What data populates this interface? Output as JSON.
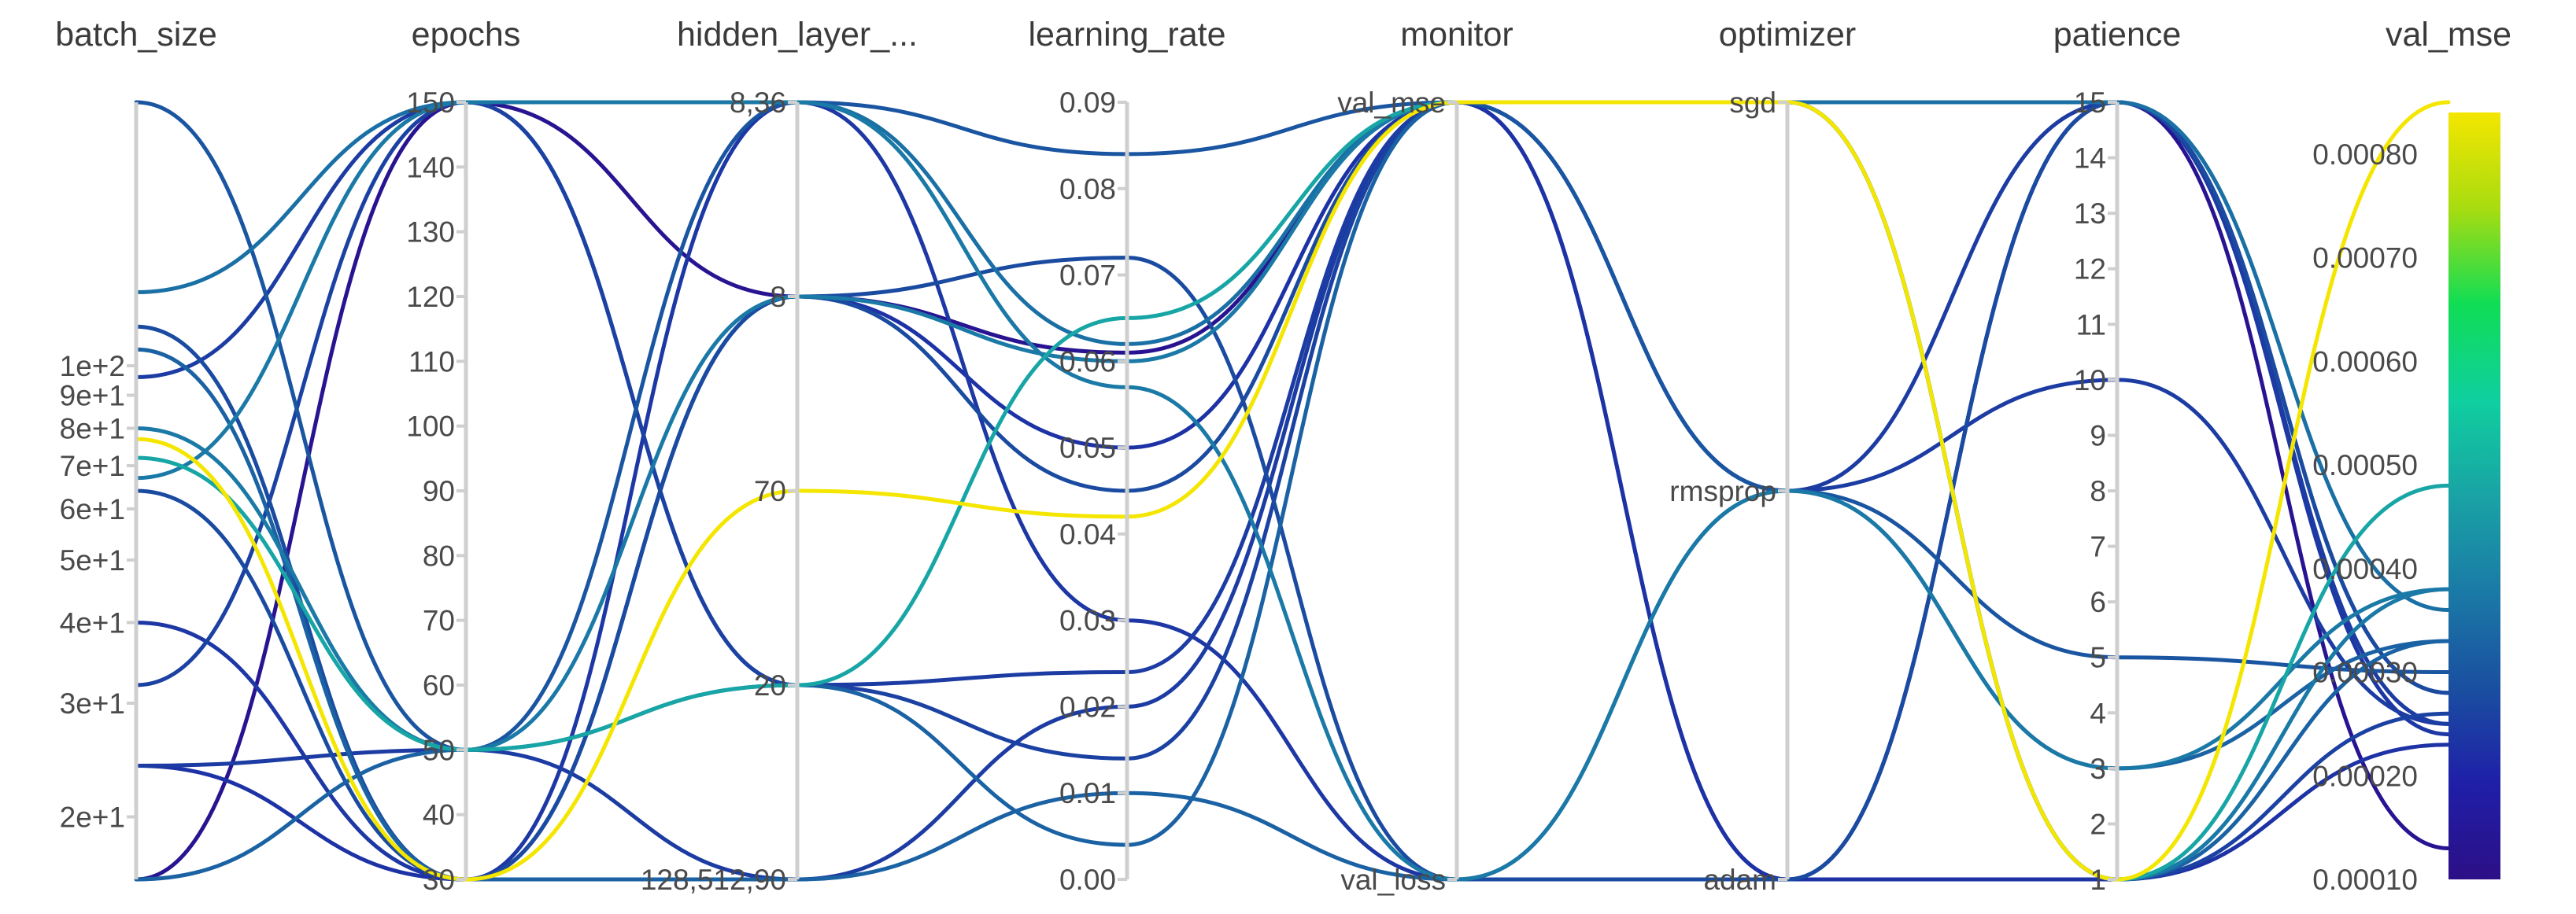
{
  "chart_data": {
    "type": "parallel_coordinates",
    "axes": [
      {
        "name": "batch_size",
        "label": "batch_size",
        "scale": "log",
        "domain": [
          16,
          256
        ],
        "ticks": [
          {
            "v": 20,
            "t": "2e+1"
          },
          {
            "v": 30,
            "t": "3e+1"
          },
          {
            "v": 40,
            "t": "4e+1"
          },
          {
            "v": 50,
            "t": "5e+1"
          },
          {
            "v": 60,
            "t": "6e+1"
          },
          {
            "v": 70,
            "t": "7e+1"
          },
          {
            "v": 80,
            "t": "8e+1"
          },
          {
            "v": 90,
            "t": "9e+1"
          },
          {
            "v": 100,
            "t": "1e+2"
          }
        ]
      },
      {
        "name": "epochs",
        "label": "epochs",
        "scale": "linear",
        "domain": [
          30,
          150
        ],
        "ticks": [
          {
            "v": 30,
            "t": "30"
          },
          {
            "v": 40,
            "t": "40"
          },
          {
            "v": 50,
            "t": "50"
          },
          {
            "v": 60,
            "t": "60"
          },
          {
            "v": 70,
            "t": "70"
          },
          {
            "v": 80,
            "t": "80"
          },
          {
            "v": 90,
            "t": "90"
          },
          {
            "v": 100,
            "t": "100"
          },
          {
            "v": 110,
            "t": "110"
          },
          {
            "v": 120,
            "t": "120"
          },
          {
            "v": 130,
            "t": "130"
          },
          {
            "v": 140,
            "t": "140"
          },
          {
            "v": 150,
            "t": "150"
          }
        ]
      },
      {
        "name": "hidden_layer_sizes",
        "label": "hidden_layer_...",
        "scale": "categorical",
        "categories": [
          "128,512,90",
          "20",
          "70",
          "8",
          "8,36"
        ],
        "ticks": [
          {
            "v": 0,
            "t": "128,512,90"
          },
          {
            "v": 1,
            "t": "20"
          },
          {
            "v": 2,
            "t": "70"
          },
          {
            "v": 3,
            "t": "8"
          },
          {
            "v": 4,
            "t": "8,36"
          }
        ]
      },
      {
        "name": "learning_rate",
        "label": "learning_rate",
        "scale": "linear",
        "domain": [
          0,
          0.09
        ],
        "ticks": [
          {
            "v": 0,
            "t": "0.00"
          },
          {
            "v": 0.01,
            "t": "0.01"
          },
          {
            "v": 0.02,
            "t": "0.02"
          },
          {
            "v": 0.03,
            "t": "0.03"
          },
          {
            "v": 0.04,
            "t": "0.04"
          },
          {
            "v": 0.05,
            "t": "0.05"
          },
          {
            "v": 0.06,
            "t": "0.06"
          },
          {
            "v": 0.07,
            "t": "0.07"
          },
          {
            "v": 0.08,
            "t": "0.08"
          },
          {
            "v": 0.09,
            "t": "0.09"
          }
        ]
      },
      {
        "name": "monitor",
        "label": "monitor",
        "scale": "categorical",
        "categories": [
          "val_loss",
          "val_mse"
        ],
        "ticks": [
          {
            "v": 0,
            "t": "val_loss"
          },
          {
            "v": 1,
            "t": "val_mse"
          }
        ]
      },
      {
        "name": "optimizer",
        "label": "optimizer",
        "scale": "categorical",
        "categories": [
          "adam",
          "rmsprop",
          "sgd"
        ],
        "ticks": [
          {
            "v": 0,
            "t": "adam"
          },
          {
            "v": 1,
            "t": "rmsprop"
          },
          {
            "v": 2,
            "t": "sgd"
          }
        ]
      },
      {
        "name": "patience",
        "label": "patience",
        "scale": "linear",
        "domain": [
          1,
          15
        ],
        "ticks": [
          {
            "v": 1,
            "t": "1"
          },
          {
            "v": 2,
            "t": "2"
          },
          {
            "v": 3,
            "t": "3"
          },
          {
            "v": 4,
            "t": "4"
          },
          {
            "v": 5,
            "t": "5"
          },
          {
            "v": 6,
            "t": "6"
          },
          {
            "v": 7,
            "t": "7"
          },
          {
            "v": 8,
            "t": "8"
          },
          {
            "v": 9,
            "t": "9"
          },
          {
            "v": 10,
            "t": "10"
          },
          {
            "v": 11,
            "t": "11"
          },
          {
            "v": 12,
            "t": "12"
          },
          {
            "v": 13,
            "t": "13"
          },
          {
            "v": 14,
            "t": "14"
          },
          {
            "v": 15,
            "t": "15"
          }
        ]
      },
      {
        "name": "val_mse",
        "label": "val_mse",
        "scale": "linear",
        "domain": [
          0.0001,
          0.00085
        ],
        "ticks": [
          {
            "v": 0.0001,
            "t": "0.00010"
          },
          {
            "v": 0.0002,
            "t": "0.00020"
          },
          {
            "v": 0.0003,
            "t": "0.00030"
          },
          {
            "v": 0.0004,
            "t": "0.00040"
          },
          {
            "v": 0.0005,
            "t": "0.00050"
          },
          {
            "v": 0.0006,
            "t": "0.00060"
          },
          {
            "v": 0.0007,
            "t": "0.00070"
          },
          {
            "v": 0.0008,
            "t": "0.00080"
          }
        ]
      }
    ],
    "colorscale": {
      "metric": "val_mse",
      "domain": [
        0.0001,
        0.00085
      ],
      "colormap": "viridis",
      "stops": [
        "#2c0f86",
        "#1f1fa8",
        "#1a4fa0",
        "#1a7aa6",
        "#19a3a5",
        "#0fcf9f",
        "#10dd55",
        "#a8dc10",
        "#f4e600"
      ]
    },
    "trials": [
      {
        "batch_size": 256,
        "epochs": 50,
        "hidden_layer_sizes": 4,
        "learning_rate": 0.084,
        "monitor": 1,
        "optimizer": 1,
        "patience": 5,
        "val_mse": 0.0003
      },
      {
        "batch_size": 130,
        "epochs": 150,
        "hidden_layer_sizes": 4,
        "learning_rate": 0.062,
        "monitor": 1,
        "optimizer": 2,
        "patience": 15,
        "val_mse": 0.00036
      },
      {
        "batch_size": 115,
        "epochs": 30,
        "hidden_layer_sizes": 3,
        "learning_rate": 0.072,
        "monitor": 0,
        "optimizer": 0,
        "patience": 15,
        "val_mse": 0.00028
      },
      {
        "batch_size": 106,
        "epochs": 30,
        "hidden_layer_sizes": 0,
        "learning_rate": 0.01,
        "monitor": 0,
        "optimizer": 1,
        "patience": 3,
        "val_mse": 0.00033
      },
      {
        "batch_size": 96,
        "epochs": 150,
        "hidden_layer_sizes": 1,
        "learning_rate": 0.024,
        "monitor": 1,
        "optimizer": 1,
        "patience": 10,
        "val_mse": 0.00025
      },
      {
        "batch_size": 80,
        "epochs": 50,
        "hidden_layer_sizes": 3,
        "learning_rate": 0.06,
        "monitor": 1,
        "optimizer": 2,
        "patience": 1,
        "val_mse": 0.00038
      },
      {
        "batch_size": 77,
        "epochs": 30,
        "hidden_layer_sizes": 2,
        "learning_rate": 0.042,
        "monitor": 1,
        "optimizer": 2,
        "patience": 1,
        "val_mse": 0.00085
      },
      {
        "batch_size": 72,
        "epochs": 50,
        "hidden_layer_sizes": 1,
        "learning_rate": 0.065,
        "monitor": 1,
        "optimizer": 2,
        "patience": 1,
        "val_mse": 0.00048
      },
      {
        "batch_size": 67,
        "epochs": 150,
        "hidden_layer_sizes": 4,
        "learning_rate": 0.057,
        "monitor": 0,
        "optimizer": 1,
        "patience": 3,
        "val_mse": 0.00038
      },
      {
        "batch_size": 64,
        "epochs": 30,
        "hidden_layer_sizes": 3,
        "learning_rate": 0.045,
        "monitor": 1,
        "optimizer": 2,
        "patience": 15,
        "val_mse": 0.00028
      },
      {
        "batch_size": 40,
        "epochs": 30,
        "hidden_layer_sizes": 4,
        "learning_rate": 0.03,
        "monitor": 0,
        "optimizer": 0,
        "patience": 15,
        "val_mse": 0.00024
      },
      {
        "batch_size": 32,
        "epochs": 150,
        "hidden_layer_sizes": 1,
        "learning_rate": 0.014,
        "monitor": 1,
        "optimizer": 2,
        "patience": 1,
        "val_mse": 0.00026
      },
      {
        "batch_size": 24,
        "epochs": 50,
        "hidden_layer_sizes": 0,
        "learning_rate": 0.02,
        "monitor": 1,
        "optimizer": 1,
        "patience": 15,
        "val_mse": 0.00025
      },
      {
        "batch_size": 24,
        "epochs": 30,
        "hidden_layer_sizes": 3,
        "learning_rate": 0.05,
        "monitor": 1,
        "optimizer": 0,
        "patience": 1,
        "val_mse": 0.00023
      },
      {
        "batch_size": 16,
        "epochs": 150,
        "hidden_layer_sizes": 3,
        "learning_rate": 0.061,
        "monitor": 1,
        "optimizer": 0,
        "patience": 15,
        "val_mse": 0.00013
      },
      {
        "batch_size": 16,
        "epochs": 50,
        "hidden_layer_sizes": 1,
        "learning_rate": 0.004,
        "monitor": 1,
        "optimizer": 2,
        "patience": 1,
        "val_mse": 0.00033
      }
    ]
  }
}
